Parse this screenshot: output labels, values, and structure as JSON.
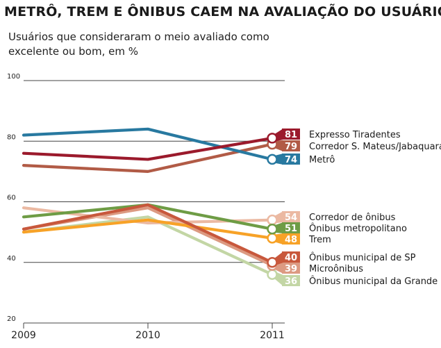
{
  "chart_data": {
    "type": "line",
    "title": "METRÔ, TREM E ÔNIBUS CAEM NA AVALIAÇÃO DO USUÁRIO",
    "subtitle": "Usuários que consideraram o meio avaliado como excelente ou bom, em %",
    "x": [
      "2009",
      "2010",
      "2011"
    ],
    "ylim": [
      20,
      100
    ],
    "yticks": [
      20,
      40,
      60,
      80,
      100
    ],
    "grid": true,
    "series": [
      {
        "name": "Ônibus municipal da Grande SP",
        "values": [
          50,
          55,
          36
        ],
        "color": "#c3d6a5"
      },
      {
        "name": "Microônibus",
        "values": [
          51,
          58,
          39
        ],
        "color": "#dc9a82"
      },
      {
        "name": "Corredor de ônibus",
        "values": [
          58,
          53,
          54
        ],
        "color": "#ebb9a2"
      },
      {
        "name": "Trem",
        "values": [
          50,
          54,
          48
        ],
        "color": "#f7a227"
      },
      {
        "name": "Ônibus metropolitano",
        "values": [
          55,
          59,
          51
        ],
        "color": "#6e9c45"
      },
      {
        "name": "Ônibus municipal de SP",
        "values": [
          51,
          59,
          40
        ],
        "color": "#c8583c"
      },
      {
        "name": "Corredor S. Mateus/Jabaquara",
        "values": [
          72,
          70,
          79
        ],
        "color": "#b15b46"
      },
      {
        "name": "Metrô",
        "values": [
          82,
          84,
          74
        ],
        "color": "#2879a0"
      },
      {
        "name": "Expresso Tiradentes",
        "values": [
          76,
          74,
          81
        ],
        "color": "#9b1a2c"
      }
    ]
  }
}
